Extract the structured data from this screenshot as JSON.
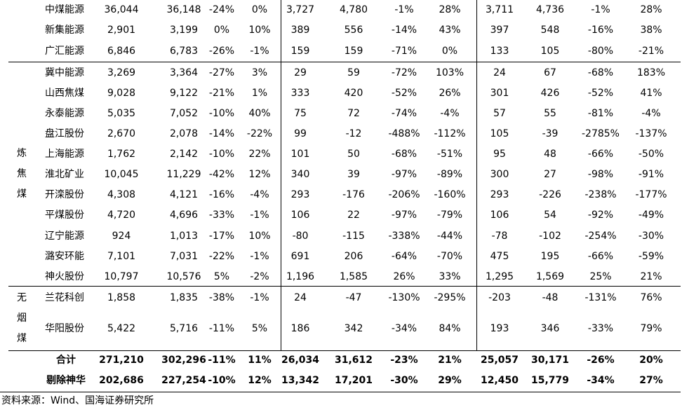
{
  "groups": [
    {
      "label": "",
      "rows": [
        [
          "中煤能源",
          "36,044",
          "36,148",
          "-24%",
          "0%",
          "3,727",
          "4,780",
          "-1%",
          "28%",
          "3,711",
          "4,736",
          "-1%",
          "28%"
        ],
        [
          "新集能源",
          "2,901",
          "3,199",
          "0%",
          "10%",
          "389",
          "556",
          "-14%",
          "43%",
          "397",
          "548",
          "-16%",
          "38%"
        ],
        [
          "广汇能源",
          "6,846",
          "6,783",
          "-26%",
          "-1%",
          "159",
          "159",
          "-71%",
          "0%",
          "133",
          "105",
          "-80%",
          "-21%"
        ]
      ]
    },
    {
      "label": "炼焦煤",
      "rows": [
        [
          "冀中能源",
          "3,269",
          "3,364",
          "-27%",
          "3%",
          "29",
          "59",
          "-72%",
          "103%",
          "24",
          "67",
          "-68%",
          "183%"
        ],
        [
          "山西焦煤",
          "9,028",
          "9,122",
          "-21%",
          "1%",
          "333",
          "420",
          "-52%",
          "26%",
          "301",
          "426",
          "-52%",
          "41%"
        ],
        [
          "永泰能源",
          "5,035",
          "7,052",
          "-10%",
          "40%",
          "75",
          "72",
          "-74%",
          "-4%",
          "57",
          "55",
          "-81%",
          "-4%"
        ],
        [
          "盘江股份",
          "2,670",
          "2,078",
          "-14%",
          "-22%",
          "99",
          "-12",
          "-488%",
          "-112%",
          "105",
          "-39",
          "-2785%",
          "-137%"
        ],
        [
          "上海能源",
          "1,762",
          "2,142",
          "-10%",
          "22%",
          "101",
          "50",
          "-68%",
          "-51%",
          "95",
          "48",
          "-66%",
          "-50%"
        ],
        [
          "淮北矿业",
          "10,045",
          "11,229",
          "-42%",
          "12%",
          "340",
          "39",
          "-97%",
          "-89%",
          "300",
          "27",
          "-98%",
          "-91%"
        ],
        [
          "开滦股份",
          "4,308",
          "4,121",
          "-16%",
          "-4%",
          "293",
          "-176",
          "-206%",
          "-160%",
          "293",
          "-226",
          "-238%",
          "-177%"
        ],
        [
          "平煤股份",
          "4,720",
          "4,696",
          "-33%",
          "-1%",
          "106",
          "22",
          "-97%",
          "-79%",
          "106",
          "54",
          "-92%",
          "-49%"
        ],
        [
          "辽宁能源",
          "924",
          "1,013",
          "-17%",
          "10%",
          "-80",
          "-115",
          "-338%",
          "-44%",
          "-78",
          "-102",
          "-254%",
          "-30%"
        ],
        [
          "潞安环能",
          "7,101",
          "7,031",
          "-22%",
          "-1%",
          "691",
          "206",
          "-64%",
          "-70%",
          "475",
          "195",
          "-66%",
          "-59%"
        ],
        [
          "神火股份",
          "10,797",
          "10,576",
          "5%",
          "-2%",
          "1,196",
          "1,585",
          "26%",
          "33%",
          "1,295",
          "1,569",
          "25%",
          "21%"
        ]
      ]
    },
    {
      "label": "无烟煤",
      "rows": [
        [
          "兰花科创",
          "1,858",
          "1,835",
          "-38%",
          "-1%",
          "24",
          "-47",
          "-130%",
          "-295%",
          "-203",
          "-48",
          "-131%",
          "76%"
        ],
        [
          "华阳股份",
          "5,422",
          "5,716",
          "-11%",
          "5%",
          "186",
          "342",
          "-34%",
          "84%",
          "193",
          "346",
          "-33%",
          "79%"
        ]
      ]
    }
  ],
  "totals": [
    [
      "合计",
      "271,210",
      "302,296",
      "-11%",
      "11%",
      "26,034",
      "31,612",
      "-23%",
      "21%",
      "25,057",
      "30,171",
      "-26%",
      "20%"
    ],
    [
      "剔除神华",
      "202,686",
      "227,254",
      "-10%",
      "12%",
      "13,342",
      "17,201",
      "-30%",
      "29%",
      "12,450",
      "15,779",
      "-34%",
      "27%"
    ]
  ],
  "footnote": "资料来源：Wind、国海证券研究所"
}
